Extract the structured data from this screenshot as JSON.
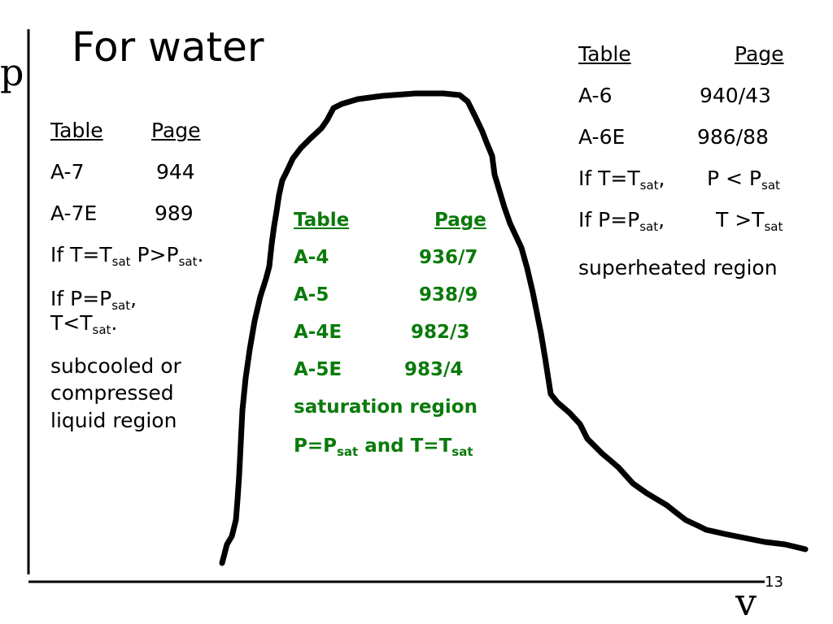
{
  "slide": {
    "title": "For water",
    "y_axis_label": "p",
    "x_axis_label": "v",
    "page_number": "13"
  },
  "left_block": {
    "header_table": "Table",
    "header_page": "Page",
    "rows": [
      {
        "table": "A-7",
        "page": "944"
      },
      {
        "table": "A-7E",
        "page": "989"
      }
    ],
    "cond1": {
      "a": "If T=T",
      "sub1": "sat",
      "b": "  P>P",
      "sub2": "sat",
      "c": "."
    },
    "cond2": {
      "a": "If P=P",
      "sub1": "sat",
      "b": ",",
      "c": "T<T",
      "sub2": "sat",
      "d": "."
    },
    "region_lines": [
      "subcooled or",
      "compressed",
      "liquid region"
    ]
  },
  "center_block": {
    "header_table": "Table",
    "header_page": "Page",
    "rows": [
      {
        "table": "A-4",
        "page": "936/7"
      },
      {
        "table": "A-5",
        "page": "938/9"
      },
      {
        "table": "A-4E",
        "page": "982/3"
      },
      {
        "table": "A-5E",
        "page": "983/4"
      }
    ],
    "region": "saturation region",
    "cond": {
      "a": "P=P",
      "sub1": "sat",
      "b": " and T=T",
      "sub2": "sat"
    },
    "color": "#0a7a0a"
  },
  "right_block": {
    "header_table": "Table",
    "header_page": "Page",
    "rows": [
      {
        "table": "A-6",
        "page": "940/43"
      },
      {
        "table": "A-6E",
        "page": "986/88"
      }
    ],
    "cond1": {
      "a": "If T=T",
      "sub1": "sat",
      "b": ",",
      "c": "P < P",
      "sub2": "sat"
    },
    "cond2": {
      "a": "If P=P",
      "sub1": "sat",
      "b": ",",
      "c": "T >T",
      "sub2": "sat"
    },
    "region": "superheated region"
  }
}
